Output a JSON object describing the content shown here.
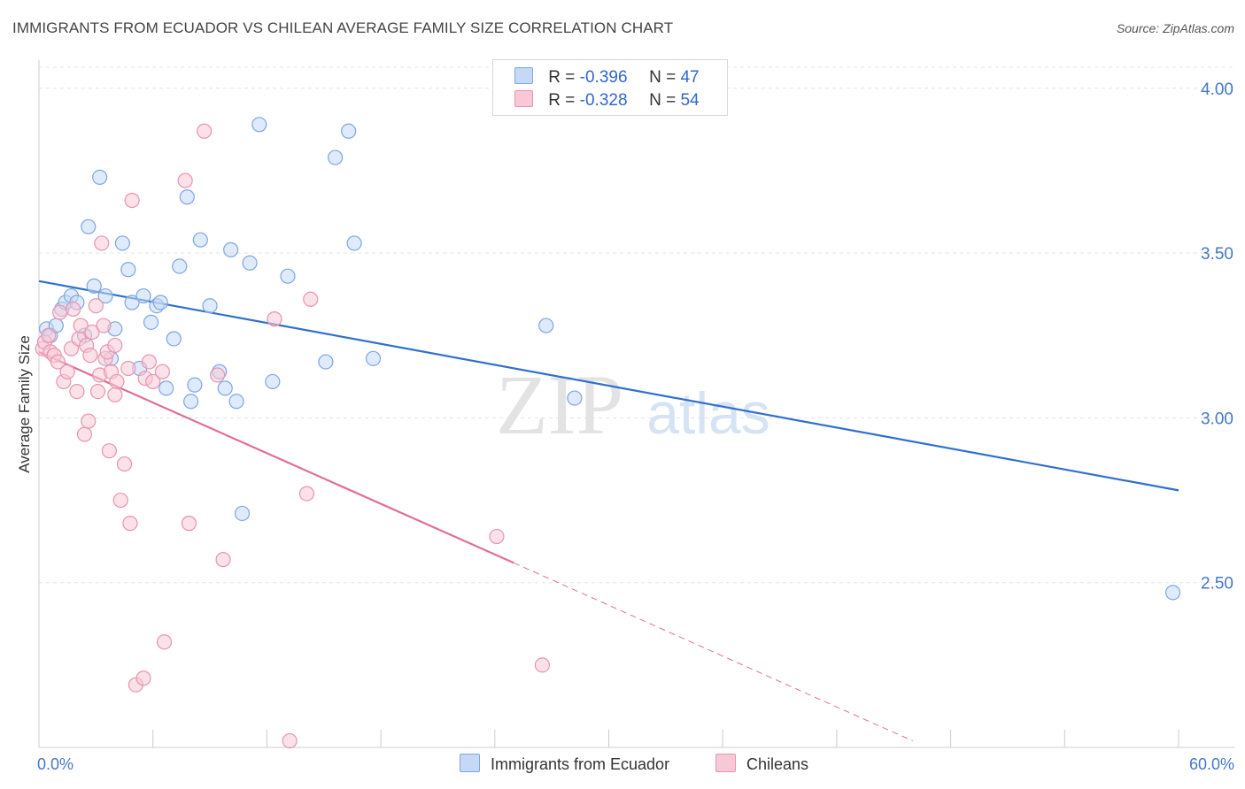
{
  "title": "IMMIGRANTS FROM ECUADOR VS CHILEAN AVERAGE FAMILY SIZE CORRELATION CHART",
  "source": "Source: ZipAtlas.com",
  "watermark": {
    "zip": "ZIP",
    "atlas": "atlas"
  },
  "colors": {
    "blue_fill": "#c5d8f5",
    "blue_stroke": "#7da7e2",
    "blue_line": "#3070cc",
    "pink_fill": "#f8c8d6",
    "pink_stroke": "#e994b0",
    "pink_line": "#e06f98"
  },
  "legend": {
    "rows": [
      {
        "r_label": "R = ",
        "r_value": "-0.396",
        "n_label": "N = ",
        "n_value": "47"
      },
      {
        "r_label": "R = ",
        "r_value": "-0.328",
        "n_label": "N = ",
        "n_value": "54"
      }
    ]
  },
  "chart_data": {
    "type": "scatter",
    "title": "IMMIGRANTS FROM ECUADOR VS CHILEAN AVERAGE FAMILY SIZE CORRELATION CHART",
    "xlabel": "",
    "ylabel": "Average Family Size",
    "xlim": [
      0,
      60
    ],
    "ylim": [
      2.0,
      4.08
    ],
    "x_tick_labels": [
      "0.0%",
      "60.0%"
    ],
    "y_ticks": [
      2.5,
      3.0,
      3.5,
      4.0
    ],
    "y_tick_labels": [
      "2.50",
      "3.00",
      "3.50",
      "4.00"
    ],
    "grid": true,
    "legend_position": "top-center",
    "series": [
      {
        "name": "Immigrants from Ecuador",
        "color": "blue",
        "trend": {
          "x": [
            0,
            60
          ],
          "y": [
            3.415,
            2.78
          ]
        },
        "points": [
          [
            0.4,
            3.27
          ],
          [
            0.6,
            3.25
          ],
          [
            0.9,
            3.28
          ],
          [
            1.2,
            3.33
          ],
          [
            1.4,
            3.35
          ],
          [
            1.7,
            3.37
          ],
          [
            2.0,
            3.35
          ],
          [
            2.4,
            3.25
          ],
          [
            2.6,
            3.58
          ],
          [
            2.9,
            3.4
          ],
          [
            3.2,
            3.73
          ],
          [
            3.5,
            3.37
          ],
          [
            3.8,
            3.18
          ],
          [
            4.0,
            3.27
          ],
          [
            4.4,
            3.53
          ],
          [
            4.7,
            3.45
          ],
          [
            4.9,
            3.35
          ],
          [
            5.3,
            3.15
          ],
          [
            5.5,
            3.37
          ],
          [
            5.9,
            3.29
          ],
          [
            6.2,
            3.34
          ],
          [
            6.4,
            3.35
          ],
          [
            6.7,
            3.09
          ],
          [
            7.1,
            3.24
          ],
          [
            7.4,
            3.46
          ],
          [
            7.8,
            3.67
          ],
          [
            8.0,
            3.05
          ],
          [
            8.2,
            3.1
          ],
          [
            8.5,
            3.54
          ],
          [
            9.0,
            3.34
          ],
          [
            9.5,
            3.14
          ],
          [
            9.8,
            3.09
          ],
          [
            10.1,
            3.51
          ],
          [
            10.4,
            3.05
          ],
          [
            10.7,
            2.71
          ],
          [
            11.1,
            3.47
          ],
          [
            11.6,
            3.89
          ],
          [
            12.3,
            3.11
          ],
          [
            13.1,
            3.43
          ],
          [
            15.1,
            3.17
          ],
          [
            15.6,
            3.79
          ],
          [
            16.3,
            3.87
          ],
          [
            16.6,
            3.53
          ],
          [
            17.6,
            3.18
          ],
          [
            26.7,
            3.28
          ],
          [
            28.2,
            3.06
          ],
          [
            59.7,
            2.47
          ]
        ]
      },
      {
        "name": "Chileans",
        "color": "pink",
        "trend": {
          "x": [
            0,
            25
          ],
          "y": [
            3.2,
            2.56
          ]
        },
        "trend_dashed": {
          "x": [
            25,
            46
          ],
          "y": [
            2.56,
            2.02
          ]
        },
        "points": [
          [
            0.2,
            3.21
          ],
          [
            0.3,
            3.23
          ],
          [
            0.5,
            3.25
          ],
          [
            0.6,
            3.2
          ],
          [
            0.8,
            3.19
          ],
          [
            1.0,
            3.17
          ],
          [
            1.1,
            3.32
          ],
          [
            1.3,
            3.11
          ],
          [
            1.5,
            3.14
          ],
          [
            1.7,
            3.21
          ],
          [
            1.8,
            3.33
          ],
          [
            2.0,
            3.08
          ],
          [
            2.1,
            3.24
          ],
          [
            2.2,
            3.28
          ],
          [
            2.4,
            2.95
          ],
          [
            2.5,
            3.22
          ],
          [
            2.6,
            2.99
          ],
          [
            2.7,
            3.19
          ],
          [
            2.8,
            3.26
          ],
          [
            3.0,
            3.34
          ],
          [
            3.1,
            3.08
          ],
          [
            3.2,
            3.13
          ],
          [
            3.3,
            3.53
          ],
          [
            3.4,
            3.28
          ],
          [
            3.5,
            3.18
          ],
          [
            3.6,
            3.2
          ],
          [
            3.7,
            2.9
          ],
          [
            3.8,
            3.14
          ],
          [
            4.0,
            3.22
          ],
          [
            4.0,
            3.07
          ],
          [
            4.1,
            3.11
          ],
          [
            4.3,
            2.75
          ],
          [
            4.5,
            2.86
          ],
          [
            4.7,
            3.15
          ],
          [
            4.8,
            2.68
          ],
          [
            4.9,
            3.66
          ],
          [
            5.1,
            2.19
          ],
          [
            5.5,
            2.21
          ],
          [
            5.6,
            3.12
          ],
          [
            5.8,
            3.17
          ],
          [
            6.0,
            3.11
          ],
          [
            6.5,
            3.14
          ],
          [
            6.6,
            2.32
          ],
          [
            7.7,
            3.72
          ],
          [
            7.9,
            2.68
          ],
          [
            8.7,
            3.87
          ],
          [
            9.4,
            3.13
          ],
          [
            9.7,
            2.57
          ],
          [
            12.4,
            3.3
          ],
          [
            13.2,
            2.02
          ],
          [
            14.1,
            2.77
          ],
          [
            14.3,
            3.36
          ],
          [
            24.1,
            2.64
          ],
          [
            26.5,
            2.25
          ]
        ]
      }
    ]
  },
  "bottom_legend": [
    {
      "label": "Immigrants from Ecuador"
    },
    {
      "label": "Chileans"
    }
  ]
}
